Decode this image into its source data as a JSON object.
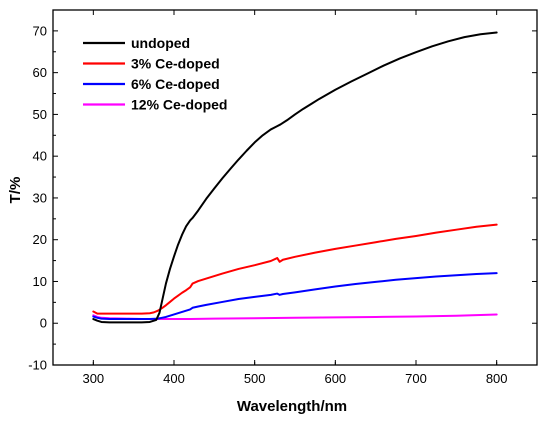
{
  "chart_data": {
    "type": "line",
    "title": "",
    "xlabel": "Wavelength/nm",
    "ylabel": "T/%",
    "xlim": [
      250,
      850
    ],
    "ylim": [
      -10,
      75
    ],
    "xticks": [
      300,
      400,
      500,
      600,
      700,
      800
    ],
    "yticks": [
      -10,
      0,
      10,
      20,
      30,
      40,
      50,
      60,
      70
    ],
    "grid": false,
    "legend_position": "top-left",
    "series": [
      {
        "name": "undoped",
        "color": "#000000",
        "x": [
          300,
          305,
          310,
          320,
          330,
          340,
          350,
          360,
          370,
          378,
          382,
          386,
          390,
          395,
          400,
          405,
          410,
          415,
          420,
          423,
          430,
          440,
          450,
          460,
          470,
          480,
          490,
          500,
          510,
          520,
          528,
          532,
          540,
          550,
          560,
          570,
          580,
          590,
          600,
          620,
          640,
          660,
          680,
          700,
          720,
          740,
          760,
          780,
          800
        ],
        "y": [
          1.0,
          0.6,
          0.3,
          0.2,
          0.2,
          0.2,
          0.2,
          0.2,
          0.3,
          0.8,
          2.5,
          6.0,
          9.5,
          13.0,
          16.0,
          18.8,
          21.2,
          23.2,
          24.6,
          25.2,
          27.0,
          29.8,
          32.3,
          34.7,
          37.0,
          39.2,
          41.3,
          43.3,
          45.0,
          46.4,
          47.2,
          47.6,
          48.6,
          50.0,
          51.3,
          52.5,
          53.7,
          54.8,
          55.9,
          57.9,
          59.8,
          61.7,
          63.4,
          64.9,
          66.3,
          67.5,
          68.5,
          69.2,
          69.6
        ]
      },
      {
        "name": "3% Ce-doped",
        "color": "#ff0000",
        "x": [
          300,
          305,
          310,
          320,
          330,
          340,
          350,
          360,
          370,
          375,
          380,
          385,
          390,
          395,
          400,
          405,
          410,
          415,
          420,
          423,
          430,
          440,
          460,
          480,
          500,
          520,
          528,
          531,
          535,
          550,
          575,
          600,
          625,
          650,
          675,
          700,
          725,
          750,
          775,
          800
        ],
        "y": [
          2.8,
          2.3,
          2.3,
          2.3,
          2.3,
          2.3,
          2.3,
          2.3,
          2.4,
          2.6,
          3.0,
          3.6,
          4.3,
          5.1,
          5.9,
          6.6,
          7.3,
          7.9,
          8.6,
          9.5,
          10.1,
          10.7,
          11.9,
          13.0,
          13.9,
          14.9,
          15.6,
          14.7,
          15.2,
          15.9,
          16.9,
          17.8,
          18.6,
          19.4,
          20.2,
          20.9,
          21.7,
          22.4,
          23.1,
          23.6
        ]
      },
      {
        "name": "6% Ce-doped",
        "color": "#0000ff",
        "x": [
          300,
          305,
          310,
          320,
          330,
          340,
          350,
          360,
          370,
          380,
          385,
          390,
          395,
          400,
          405,
          410,
          415,
          420,
          423,
          430,
          440,
          460,
          480,
          500,
          520,
          528,
          531,
          535,
          550,
          575,
          600,
          625,
          650,
          675,
          700,
          725,
          750,
          775,
          800
        ],
        "y": [
          1.6,
          1.3,
          1.1,
          1.0,
          1.0,
          1.0,
          1.0,
          1.0,
          1.0,
          1.1,
          1.3,
          1.5,
          1.8,
          2.1,
          2.4,
          2.7,
          3.0,
          3.3,
          3.7,
          4.0,
          4.4,
          5.1,
          5.8,
          6.3,
          6.8,
          7.1,
          6.8,
          7.0,
          7.4,
          8.1,
          8.8,
          9.4,
          9.9,
          10.4,
          10.8,
          11.2,
          11.5,
          11.8,
          12.0
        ]
      },
      {
        "name": "12% Ce-doped",
        "color": "#ff00ff",
        "x": [
          300,
          305,
          310,
          320,
          340,
          360,
          380,
          400,
          420,
          450,
          500,
          550,
          600,
          650,
          700,
          750,
          800
        ],
        "y": [
          1.9,
          1.5,
          1.3,
          1.2,
          1.1,
          1.0,
          1.0,
          1.0,
          1.0,
          1.1,
          1.2,
          1.3,
          1.4,
          1.5,
          1.6,
          1.8,
          2.1
        ]
      }
    ]
  }
}
